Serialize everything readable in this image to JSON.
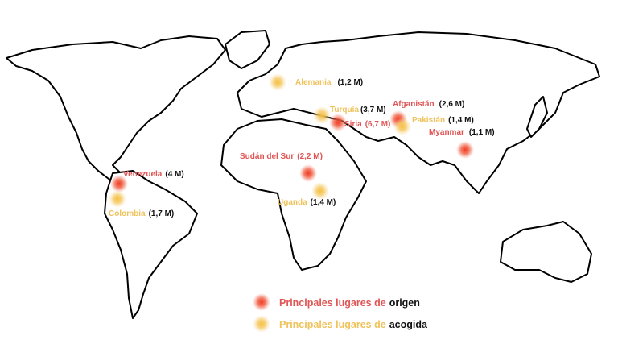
{
  "origin_places": [
    {
      "name": "Venezuela",
      "figure": "(4 M)"
    },
    {
      "name": "Sudán del Sur",
      "figure": "(2,2 M)"
    },
    {
      "name": "Siria",
      "figure": "(6,7 M)"
    },
    {
      "name": "Afganistán",
      "figure": "(2,6 M)"
    },
    {
      "name": "Myanmar",
      "figure": "(1,1 M)"
    }
  ],
  "host_places": [
    {
      "name": "Colombia",
      "figure": "(1,7 M)"
    },
    {
      "name": "Uganda",
      "figure": "(1,4 M)"
    },
    {
      "name": "Turquía",
      "figure": "(3,7 M)"
    },
    {
      "name": "Alemania",
      "figure": "(1,2 M)"
    },
    {
      "name": "Pakistán",
      "figure": "(1,4 M)"
    }
  ],
  "legend": {
    "origin": {
      "prefix": "Principales lugares de",
      "word": "origen"
    },
    "host": {
      "prefix": "Principales lugares de",
      "word": "acogida"
    }
  }
}
